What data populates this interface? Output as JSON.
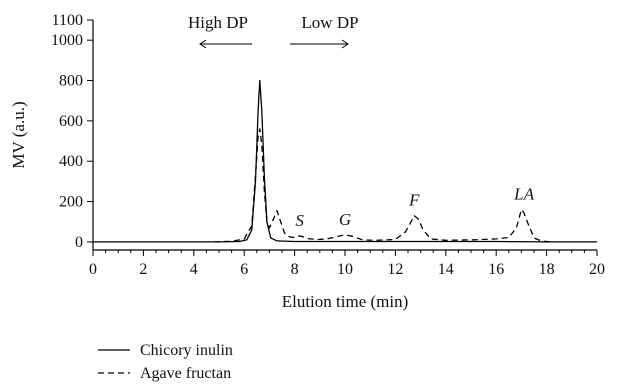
{
  "chart_data": {
    "type": "line",
    "xlabel": "Elution time (min)",
    "ylabel": "MV (a.u.)",
    "xlim": [
      0,
      20
    ],
    "ylim": [
      -40,
      1100
    ],
    "x_ticks": [
      "0",
      "2",
      "4",
      "6",
      "8",
      "10",
      "12",
      "14",
      "16",
      "18",
      "20"
    ],
    "y_ticks": [
      "0",
      "200",
      "400",
      "600",
      "800",
      "1000",
      "1100"
    ],
    "grid": false,
    "legend_position": "bottom-left",
    "series": [
      {
        "name": "Chicory inulin",
        "line_style": "solid",
        "points": [
          [
            0,
            0
          ],
          [
            5.0,
            0
          ],
          [
            5.8,
            2
          ],
          [
            6.1,
            10
          ],
          [
            6.3,
            60
          ],
          [
            6.45,
            300
          ],
          [
            6.55,
            650
          ],
          [
            6.62,
            800
          ],
          [
            6.7,
            650
          ],
          [
            6.8,
            320
          ],
          [
            6.9,
            100
          ],
          [
            7.05,
            20
          ],
          [
            7.3,
            5
          ],
          [
            8,
            2
          ],
          [
            10,
            2
          ],
          [
            12,
            2
          ],
          [
            14,
            2
          ],
          [
            16,
            2
          ],
          [
            18,
            0
          ],
          [
            20,
            0
          ]
        ]
      },
      {
        "name": "Agave fructan",
        "line_style": "dashed",
        "points": [
          [
            4.8,
            0
          ],
          [
            5.5,
            3
          ],
          [
            6.0,
            15
          ],
          [
            6.3,
            80
          ],
          [
            6.45,
            330
          ],
          [
            6.55,
            520
          ],
          [
            6.62,
            560
          ],
          [
            6.7,
            480
          ],
          [
            6.8,
            250
          ],
          [
            6.9,
            100
          ],
          [
            7.0,
            70
          ],
          [
            7.15,
            110
          ],
          [
            7.3,
            155
          ],
          [
            7.45,
            100
          ],
          [
            7.6,
            45
          ],
          [
            7.8,
            25
          ],
          [
            8.0,
            22
          ],
          [
            8.2,
            30
          ],
          [
            8.6,
            15
          ],
          [
            9.0,
            12
          ],
          [
            9.4,
            18
          ],
          [
            9.8,
            30
          ],
          [
            10.0,
            35
          ],
          [
            10.3,
            28
          ],
          [
            10.7,
            10
          ],
          [
            11.2,
            8
          ],
          [
            12.0,
            12
          ],
          [
            12.4,
            50
          ],
          [
            12.6,
            95
          ],
          [
            12.75,
            130
          ],
          [
            12.9,
            115
          ],
          [
            13.1,
            60
          ],
          [
            13.4,
            15
          ],
          [
            14.0,
            8
          ],
          [
            15.0,
            10
          ],
          [
            16.0,
            15
          ],
          [
            16.5,
            22
          ],
          [
            16.8,
            70
          ],
          [
            17.0,
            160
          ],
          [
            17.1,
            145
          ],
          [
            17.25,
            95
          ],
          [
            17.5,
            20
          ],
          [
            17.8,
            4
          ],
          [
            18.2,
            0
          ]
        ]
      }
    ],
    "annotations": {
      "high_dp": "High DP",
      "low_dp": "Low DP",
      "peaks": [
        {
          "label": "S",
          "x": 8.2,
          "y": 30
        },
        {
          "label": "G",
          "x": 10.0,
          "y": 35
        },
        {
          "label": "F",
          "x": 12.75,
          "y": 130
        },
        {
          "label": "L",
          "x": 16.9,
          "y": 160
        },
        {
          "label": "A",
          "x": 17.3,
          "y": 160
        }
      ]
    }
  }
}
